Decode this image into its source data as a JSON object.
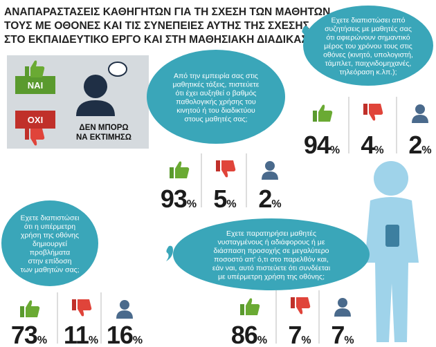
{
  "header": {
    "title": [
      "ΑΝΑΠΑΡΑΣΤΑΣΕΙΣ ΚΑΘΗΓΗΤΩΝ ΓΙΑ ΤΗ ΣΧΕΣΗ ΤΩΝ ΜΑΘΗΤΩΝ",
      "ΤΟΥΣ ΜΕ ΟΘΟΝΕΣ ΚΑΙ ΤΙΣ ΣΥΝΕΠΕΙΕΣ ΑΥΤΗΣ ΤΗΣ ΣΧΕΣΗΣ",
      "ΣΤΟ ΕΚΠΑΙΔΕΥΤΙΚΟ ΕΡΓΟ ΚΑΙ ΣΤΗ ΜΑΘΗΣΙΑΚΗ ΔΙΑΔΙΚΑΣΙΑ"
    ]
  },
  "legend": {
    "yes": "ΝΑΙ",
    "no": "ΟΧΙ",
    "unsure": [
      "ΔΕΝ ΜΠΟΡΩ",
      "ΝΑ ΕΚΤΙΜΗΣΩ"
    ]
  },
  "questions": [
    {
      "lines": [
        "Από την εμπειρία σας στις",
        "μαθητικές τάξεις, πιστεύετε",
        "ότι έχει αυξηθεί ο βαθμός",
        "παθολογικής χρήσης του",
        "κινητού ή του διαδικτύου",
        "στους μαθητές σας;"
      ],
      "stats": [
        {
          "value": "93",
          "unit": "%"
        },
        {
          "value": "5",
          "unit": "%"
        },
        {
          "value": "2",
          "unit": "%"
        }
      ]
    },
    {
      "lines": [
        "Εχετε διαπιστώσει από",
        "συζητήσεις με μαθητές σας",
        "ότι αφιερώνουν σημαντικό",
        "μέρος του χρόνου τους στις",
        "οθόνες (κινητό, υπολογιστή,",
        "τάμπλετ, παιχνιδομηχανές,",
        "τηλεόραση κ.λπ.);"
      ],
      "stats": [
        {
          "value": "94",
          "unit": "%"
        },
        {
          "value": "4",
          "unit": "%"
        },
        {
          "value": "2",
          "unit": "%"
        }
      ]
    },
    {
      "lines": [
        "Εχετε διαπιστώσει",
        "ότι η υπέρμετρη",
        "χρήση της οθόνης",
        "δημιουργεί",
        "προβλήματα",
        "στην επίδοση",
        "των μαθητών σας;"
      ],
      "stats": [
        {
          "value": "73",
          "unit": "%"
        },
        {
          "value": "11",
          "unit": "%"
        },
        {
          "value": "16",
          "unit": "%"
        }
      ]
    },
    {
      "lines": [
        "Εχετε παρατηρήσει μαθητές",
        "νυσταγμένους ή αδιάφορους ή με",
        "διάσπαση προσοχής σε μεγαλύτερο",
        "ποσοστό απ' ό,τι στο παρελθόν και,",
        "εάν ναι, αυτό πιστεύετε ότι συνδέεται",
        "με υπέρμετρη χρήση της οθόνης;"
      ],
      "stats": [
        {
          "value": "86",
          "unit": "%"
        },
        {
          "value": "7",
          "unit": "%"
        },
        {
          "value": "7",
          "unit": "%"
        }
      ]
    }
  ]
}
